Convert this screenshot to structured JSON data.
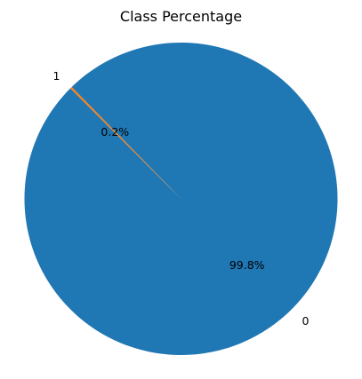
{
  "chart_data": {
    "type": "pie",
    "title": "Class Percentage",
    "slices": [
      {
        "label": "0",
        "value": 99.8,
        "pct_label": "99.8%",
        "color": "#1f77b4"
      },
      {
        "label": "1",
        "value": 0.2,
        "pct_label": "0.2%",
        "color": "#ff7f0e"
      }
    ],
    "start_angle_deg": 135,
    "direction": "counterclockwise"
  }
}
